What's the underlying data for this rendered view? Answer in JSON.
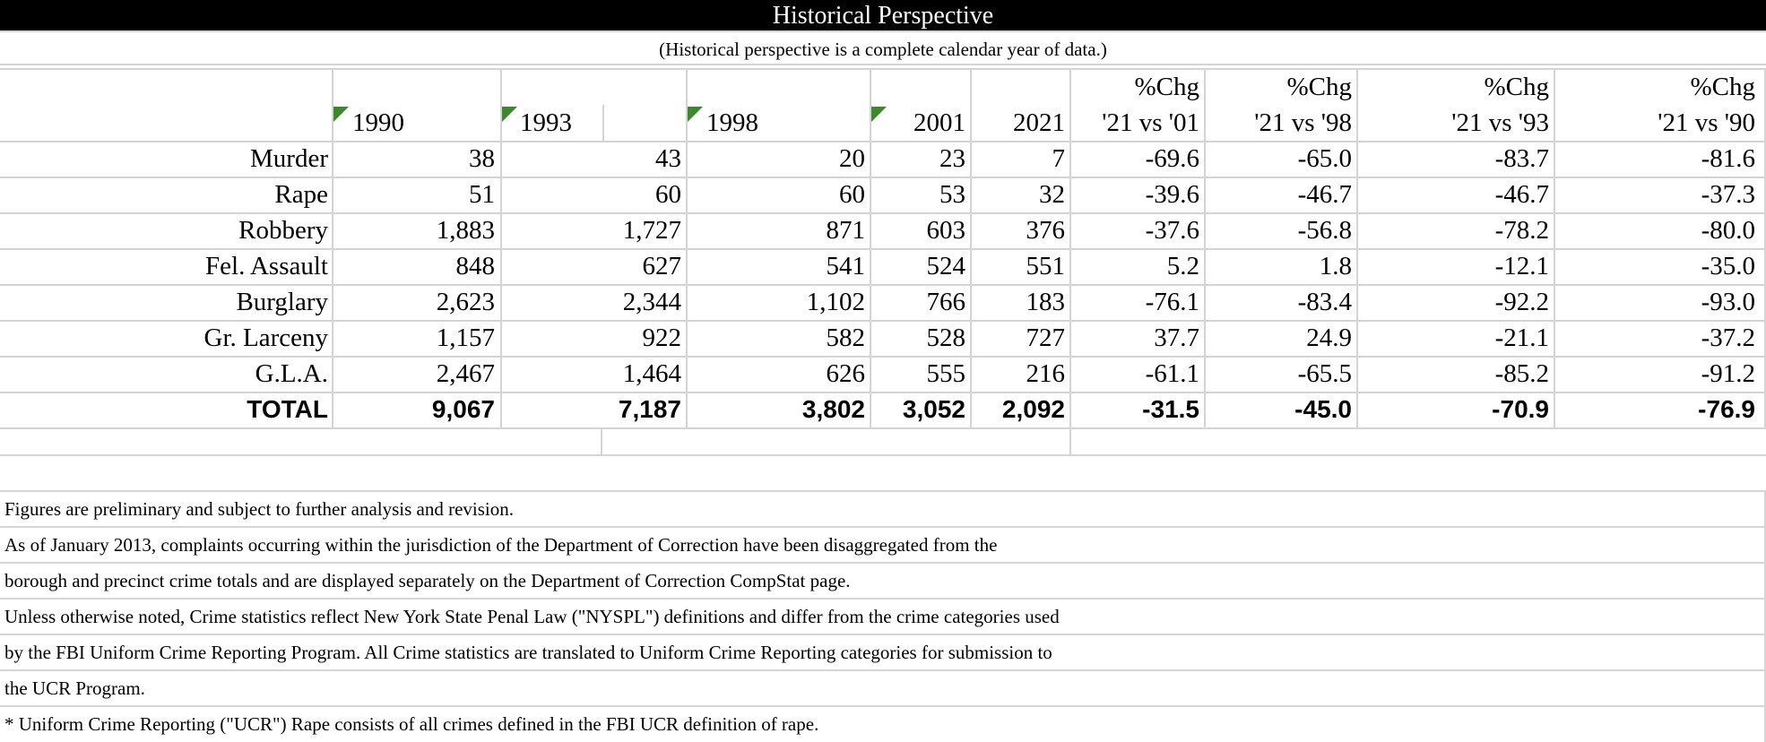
{
  "title": "Historical Perspective",
  "subtitle": "(Historical perspective is a complete calendar year of data.)",
  "columns": {
    "year_headers": [
      "1990",
      "1993",
      "1998",
      "2001",
      "2021"
    ],
    "pct_top": [
      "%Chg",
      "%Chg",
      "%Chg",
      "%Chg"
    ],
    "pct_bottom": [
      "'21 vs '01",
      "'21 vs '98",
      "'21 vs '93",
      "'21 vs '90"
    ]
  },
  "rows": [
    {
      "label": "Murder",
      "values": [
        "38",
        "43",
        "20",
        "23",
        "7",
        "-69.6",
        "-65.0",
        "-83.7",
        "-81.6"
      ]
    },
    {
      "label": "Rape",
      "values": [
        "51",
        "60",
        "60",
        "53",
        "32",
        "-39.6",
        "-46.7",
        "-46.7",
        "-37.3"
      ]
    },
    {
      "label": "Robbery",
      "values": [
        "1,883",
        "1,727",
        "871",
        "603",
        "376",
        "-37.6",
        "-56.8",
        "-78.2",
        "-80.0"
      ]
    },
    {
      "label": "Fel. Assault",
      "values": [
        "848",
        "627",
        "541",
        "524",
        "551",
        "5.2",
        "1.8",
        "-12.1",
        "-35.0"
      ]
    },
    {
      "label": "Burglary",
      "values": [
        "2,623",
        "2,344",
        "1,102",
        "766",
        "183",
        "-76.1",
        "-83.4",
        "-92.2",
        "-93.0"
      ]
    },
    {
      "label": "Gr. Larceny",
      "values": [
        "1,157",
        "922",
        "582",
        "528",
        "727",
        "37.7",
        "24.9",
        "-21.1",
        "-37.2"
      ]
    },
    {
      "label": "G.L.A.",
      "values": [
        "2,467",
        "1,464",
        "626",
        "555",
        "216",
        "-61.1",
        "-65.5",
        "-85.2",
        "-91.2"
      ]
    }
  ],
  "total": {
    "label": "TOTAL",
    "values": [
      "9,067",
      "7,187",
      "3,802",
      "3,052",
      "2,092",
      "-31.5",
      "-45.0",
      "-70.9",
      "-76.9"
    ]
  },
  "notes": [
    "Figures are preliminary and subject to further analysis and revision.",
    "As of January 2013, complaints occurring within the jurisdiction of the Department of Correction have been disaggregated from the",
    "borough and precinct crime totals and are displayed separately on the Department of Correction CompStat page.",
    "Unless otherwise noted, Crime statistics reflect New York State Penal Law (\"NYSPL\") definitions and differ from the crime categories used",
    "by the FBI Uniform Crime Reporting Program. All Crime statistics are translated to Uniform Crime Reporting categories for submission to",
    "the UCR Program.",
    "* Uniform Crime Reporting (\"UCR\") Rape consists of all crimes defined in the FBI UCR definition of rape."
  ]
}
